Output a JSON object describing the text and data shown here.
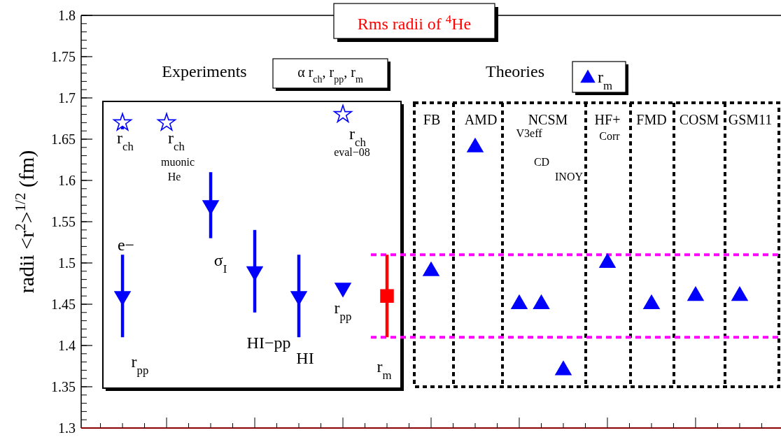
{
  "chart_data": {
    "type": "scatter",
    "title": "Rms radii of $^{4}$He",
    "ylabel": "radii <r$^{2}$>$^{1/2}$ (fm)",
    "categories": [
      null,
      null,
      null,
      null,
      null,
      null,
      null,
      null,
      null,
      null,
      null,
      null,
      null,
      null,
      null,
      null,
      null,
      null,
      null,
      null,
      null,
      null,
      null,
      null,
      null,
      null,
      null,
      null,
      null,
      null,
      null
    ],
    "ylim": [
      1.3,
      1.8
    ],
    "yticks": [
      1.3,
      1.35,
      1.4,
      1.45,
      1.5,
      1.55,
      1.6,
      1.65,
      1.7,
      1.75,
      1.8
    ],
    "tick_labels": "y",
    "legend": "top right",
    "series": [
      {
        "color": "#0000ff",
        "marker": "star",
        "values": [
          null,
          1.67,
          null,
          1.67,
          null,
          null,
          null,
          null,
          null,
          null,
          null,
          1.68,
          null,
          null,
          null,
          null,
          null,
          null,
          null,
          null,
          null,
          null,
          null,
          null,
          null,
          null,
          null,
          null,
          null,
          null,
          null
        ],
        "errors": [
          null,
          0.008,
          null,
          null,
          null,
          null,
          null,
          null,
          null,
          null,
          null,
          null,
          null,
          null,
          null,
          null,
          null,
          null,
          null,
          null,
          null,
          null,
          null,
          null,
          null,
          null,
          null,
          null,
          null,
          null,
          null
        ]
      },
      {
        "color": "#0000ff",
        "marker": "triangle",
        "values": [
          null,
          1.46,
          null,
          null,
          null,
          1.57,
          null,
          1.49,
          null,
          1.46,
          null,
          1.47,
          null,
          null,
          null,
          null,
          null,
          null,
          null,
          null,
          null,
          null,
          null,
          null,
          null,
          null,
          null,
          null,
          null,
          null,
          null
        ],
        "errors": [
          null,
          0.05,
          null,
          null,
          null,
          0.04,
          null,
          0.05,
          null,
          0.05,
          null,
          null,
          null,
          null,
          null,
          null,
          null,
          null,
          null,
          null,
          null,
          null,
          null,
          null,
          null,
          null,
          null,
          null,
          null,
          null,
          null
        ]
      },
      {
        "color": "#ff0000",
        "marker": "square",
        "values": [
          null,
          null,
          null,
          null,
          null,
          null,
          null,
          null,
          null,
          null,
          null,
          null,
          null,
          1.46,
          null,
          null,
          null,
          null,
          null,
          null,
          null,
          null,
          null,
          null,
          null,
          null,
          null,
          null,
          null,
          null,
          null
        ],
        "errors": [
          null,
          null,
          null,
          null,
          null,
          null,
          null,
          null,
          null,
          null,
          null,
          null,
          null,
          0.05,
          null,
          null,
          null,
          null,
          null,
          null,
          null,
          null,
          null,
          null,
          null,
          null,
          null,
          null,
          null,
          null,
          null
        ]
      },
      {
        "name": "r$_{m}$",
        "color": "#0000ff",
        "marker": "triangle",
        "values": [
          null,
          null,
          null,
          null,
          null,
          null,
          null,
          null,
          null,
          null,
          null,
          null,
          null,
          null,
          null,
          1.49,
          null,
          1.64,
          null,
          1.45,
          1.45,
          1.37,
          null,
          1.5,
          null,
          1.45,
          null,
          1.46,
          null,
          1.46,
          null
        ]
      }
    ],
    "ref_lines": [
      {
        "axis": "y",
        "value": 1.51,
        "color": "#ff00ff",
        "line_style": "dashed"
      },
      {
        "axis": "y",
        "value": 1.41,
        "color": "#ff00ff",
        "line_style": "dashed"
      }
    ],
    "annotations": [
      "Experiments",
      "α  r$_{ch}$, r$_{pp}$, r$_{m}$",
      "Theories",
      "FB",
      "AMD",
      "NCSM",
      "HF+",
      "FMD",
      "COSM",
      "GSM11",
      "V3eff",
      "CD",
      "INOY",
      "Corr",
      "r$_{ch}$",
      "r$_{ch}$",
      "muonic",
      "He",
      "r$_{ch}$",
      "eval−08",
      "e−",
      "r$_{pp}$",
      "σ$_{I}$",
      "HI−pp",
      "HI",
      "r$_{pp}$",
      "r$_{m}$"
    ]
  }
}
